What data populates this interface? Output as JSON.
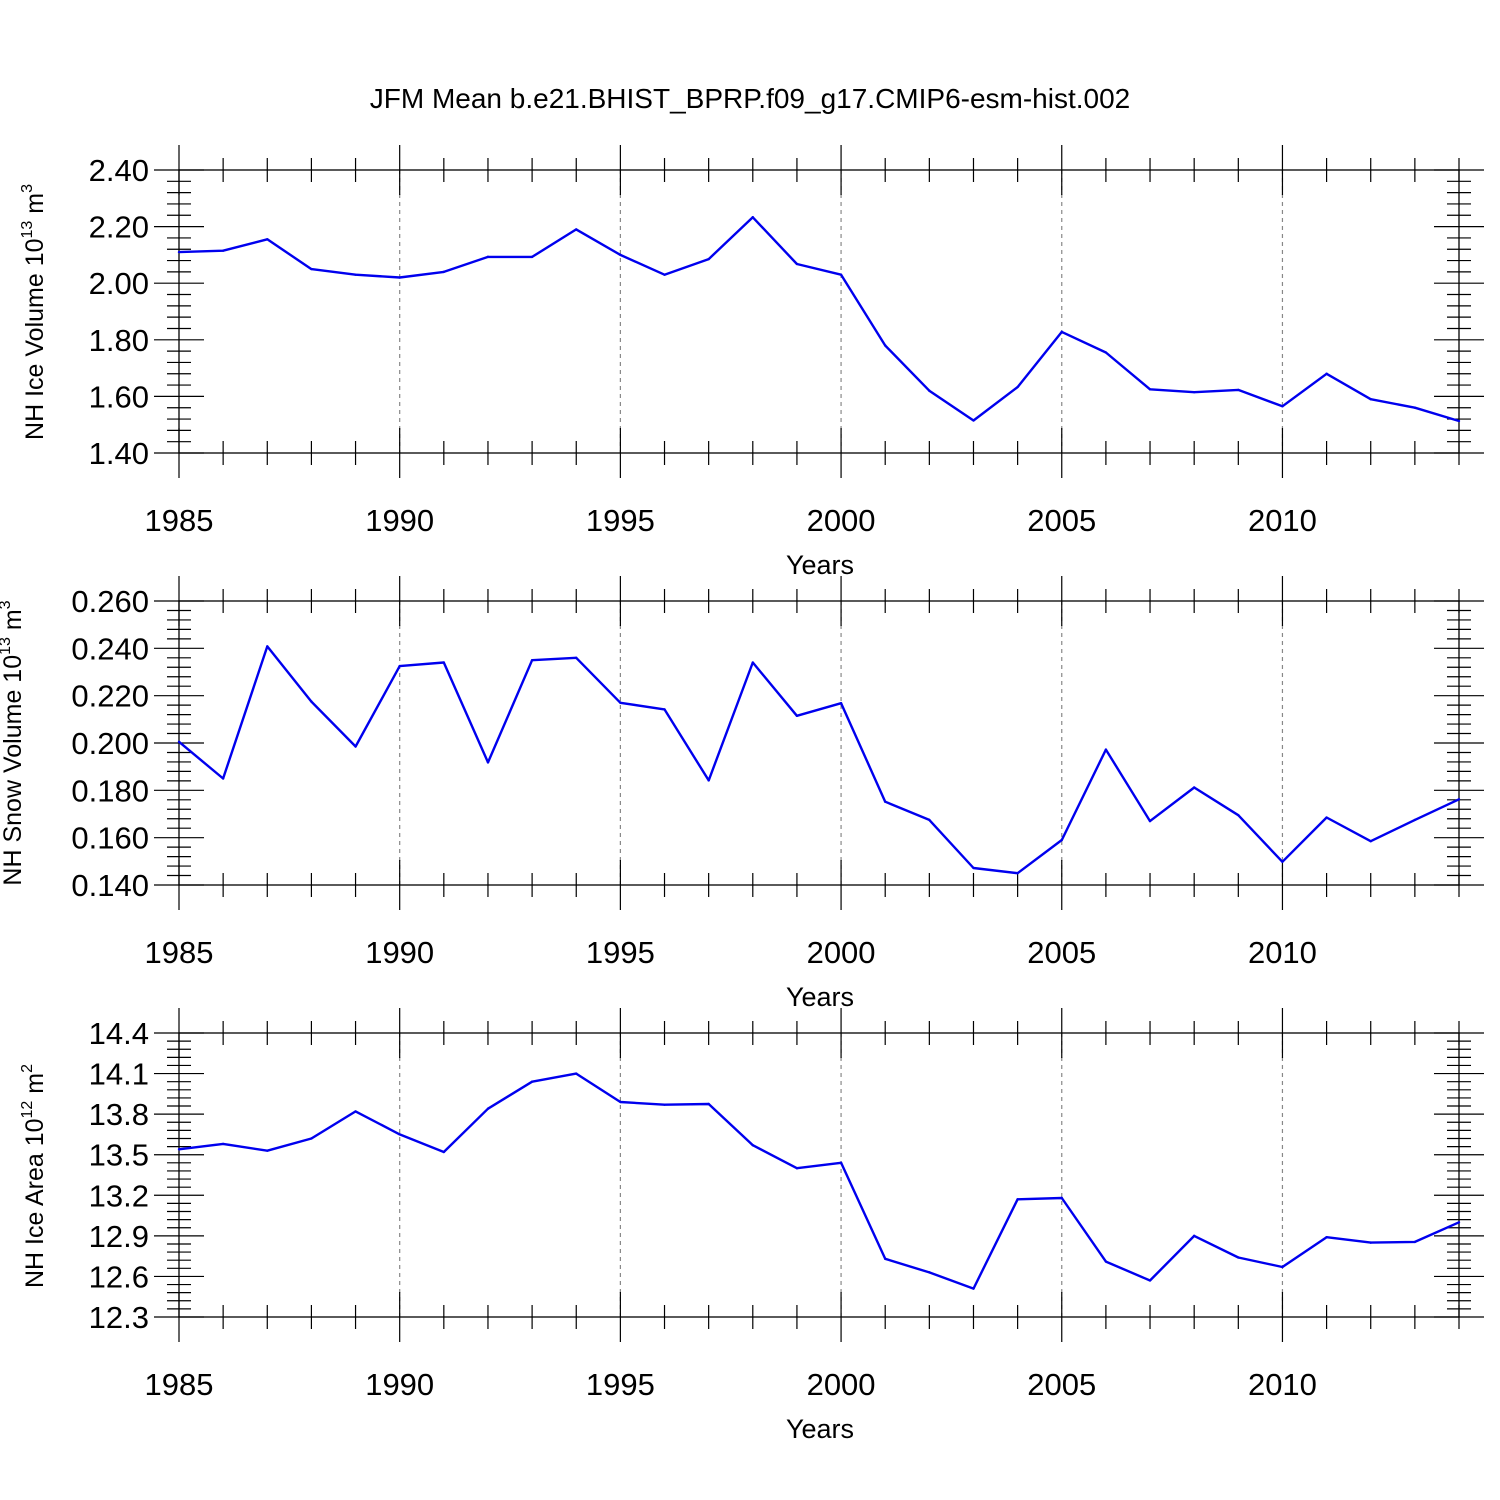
{
  "title": "JFM Mean b.e21.BHIST_BPRP.f09_g17.CMIP6-esm-hist.002",
  "chart_data": [
    {
      "type": "line",
      "ylabel": {
        "base": "NH Ice Volume 10",
        "exponent": "13",
        "unit": " m",
        "unit_exponent": "3"
      },
      "xlabel": "Years",
      "xlim": [
        1985,
        2014
      ],
      "ylim": [
        1.4,
        2.4
      ],
      "yticks": [
        1.4,
        1.6,
        1.8,
        2.0,
        2.2,
        2.4
      ],
      "ytick_labels": [
        "1.40",
        "1.60",
        "1.80",
        "2.00",
        "2.20",
        "2.40"
      ],
      "xticks": [
        1985,
        1990,
        1995,
        2000,
        2005,
        2010
      ],
      "xtick_labels": [
        "1985",
        "1990",
        "1995",
        "2000",
        "2005",
        "2010"
      ],
      "grid": "vertical dashed",
      "color": "#0000ee",
      "x": [
        1985,
        1986,
        1987,
        1988,
        1989,
        1990,
        1991,
        1992,
        1993,
        1994,
        1995,
        1996,
        1997,
        1998,
        1999,
        2000,
        2001,
        2002,
        2003,
        2004,
        2005,
        2006,
        2007,
        2008,
        2009,
        2010,
        2011,
        2012,
        2013,
        2014
      ],
      "y": [
        2.11,
        2.115,
        2.155,
        2.05,
        2.03,
        2.02,
        2.04,
        2.093,
        2.093,
        2.19,
        2.1,
        2.03,
        2.085,
        2.233,
        2.068,
        2.03,
        1.78,
        1.62,
        1.515,
        1.633,
        1.828,
        1.755,
        1.625,
        1.615,
        1.623,
        1.565,
        1.68,
        1.59,
        1.56,
        1.513
      ]
    },
    {
      "type": "line",
      "ylabel": {
        "base": "NH Snow Volume 10",
        "exponent": "13",
        "unit": " m",
        "unit_exponent": "3"
      },
      "xlabel": "Years",
      "xlim": [
        1985,
        2014
      ],
      "ylim": [
        0.14,
        0.26
      ],
      "yticks": [
        0.14,
        0.16,
        0.18,
        0.2,
        0.22,
        0.24,
        0.26
      ],
      "ytick_labels": [
        "0.140",
        "0.160",
        "0.180",
        "0.200",
        "0.220",
        "0.240",
        "0.260"
      ],
      "xticks": [
        1985,
        1990,
        1995,
        2000,
        2005,
        2010
      ],
      "xtick_labels": [
        "1985",
        "1990",
        "1995",
        "2000",
        "2005",
        "2010"
      ],
      "grid": "vertical dashed",
      "color": "#0000ee",
      "x": [
        1985,
        1986,
        1987,
        1988,
        1989,
        1990,
        1991,
        1992,
        1993,
        1994,
        1995,
        1996,
        1997,
        1998,
        1999,
        2000,
        2001,
        2002,
        2003,
        2004,
        2005,
        2006,
        2007,
        2008,
        2009,
        2010,
        2011,
        2012,
        2013,
        2014
      ],
      "y": [
        0.2005,
        0.185,
        0.2408,
        0.2175,
        0.1985,
        0.2325,
        0.234,
        0.1918,
        0.235,
        0.236,
        0.217,
        0.2142,
        0.1842,
        0.234,
        0.2115,
        0.2168,
        0.1752,
        0.1675,
        0.1472,
        0.145,
        0.159,
        0.1972,
        0.167,
        0.1812,
        0.1695,
        0.1498,
        0.1685,
        0.1585,
        0.1675,
        0.1762
      ]
    },
    {
      "type": "line",
      "ylabel": {
        "base": "NH Ice Area 10",
        "exponent": "12",
        "unit": " m",
        "unit_exponent": "2"
      },
      "xlabel": "Years",
      "xlim": [
        1985,
        2014
      ],
      "ylim": [
        12.3,
        14.4
      ],
      "yticks": [
        12.3,
        12.6,
        12.9,
        13.2,
        13.5,
        13.8,
        14.1,
        14.4
      ],
      "ytick_labels": [
        "12.3",
        "12.6",
        "12.9",
        "13.2",
        "13.5",
        "13.8",
        "14.1",
        "14.4"
      ],
      "xticks": [
        1985,
        1990,
        1995,
        2000,
        2005,
        2010
      ],
      "xtick_labels": [
        "1985",
        "1990",
        "1995",
        "2000",
        "2005",
        "2010"
      ],
      "grid": "vertical dashed",
      "color": "#0000ee",
      "x": [
        1985,
        1986,
        1987,
        1988,
        1989,
        1990,
        1991,
        1992,
        1993,
        1994,
        1995,
        1996,
        1997,
        1998,
        1999,
        2000,
        2001,
        2002,
        2003,
        2004,
        2005,
        2006,
        2007,
        2008,
        2009,
        2010,
        2011,
        2012,
        2013,
        2014
      ],
      "y": [
        13.54,
        13.58,
        13.53,
        13.62,
        13.82,
        13.65,
        13.52,
        13.84,
        14.04,
        14.1,
        13.89,
        13.87,
        13.875,
        13.57,
        13.4,
        13.44,
        12.73,
        12.63,
        12.51,
        13.17,
        13.18,
        12.71,
        12.57,
        12.9,
        12.74,
        12.67,
        12.89,
        12.85,
        12.855,
        13.0
      ]
    }
  ]
}
